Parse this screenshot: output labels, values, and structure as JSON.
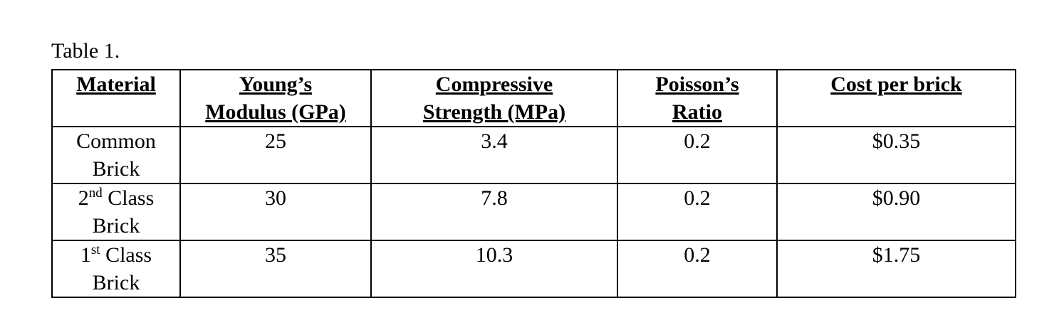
{
  "caption": "Table 1.",
  "table": {
    "headers": [
      [
        "Material"
      ],
      [
        "Young’s",
        "Modulus (GPa)"
      ],
      [
        "Compressive",
        "Strength (MPa)"
      ],
      [
        "Poisson’s",
        "Ratio"
      ],
      [
        "Cost per brick"
      ]
    ],
    "rows": [
      {
        "material": {
          "line1": "Common",
          "line2": "Brick"
        },
        "values": [
          25,
          3.4,
          0.2,
          "$0.35"
        ]
      },
      {
        "material": {
          "prefix": "2",
          "sup": "nd",
          "line1": "Class",
          "line2": "Brick"
        },
        "values": [
          30,
          7.8,
          0.2,
          "$0.90"
        ]
      },
      {
        "material": {
          "prefix": "1",
          "sup": "st",
          "line1": "Class",
          "line2": "Brick"
        },
        "values": [
          35,
          10.3,
          0.2,
          "$1.75"
        ]
      }
    ]
  }
}
